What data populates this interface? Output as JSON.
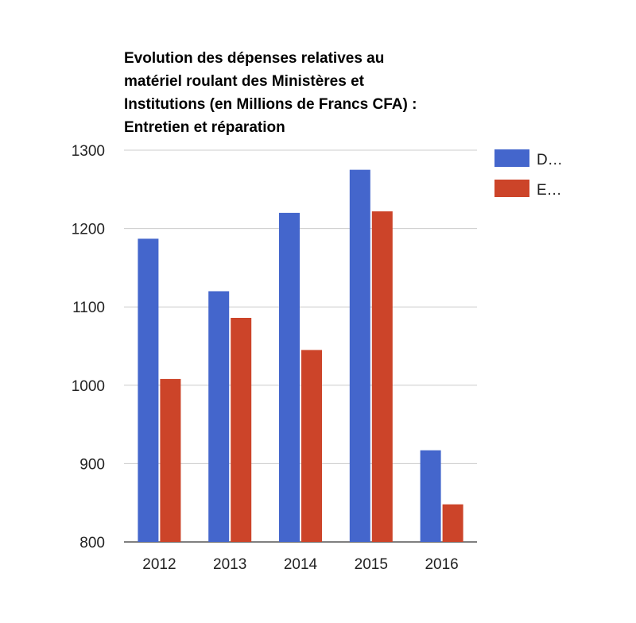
{
  "chart_data": {
    "type": "bar",
    "title": "Evolution des dépenses relatives au\nmatériel roulant des Ministères et\nInstitutions (en Millions de Francs CFA) :\nEntretien et réparation",
    "categories": [
      "2012",
      "2013",
      "2014",
      "2015",
      "2016"
    ],
    "series": [
      {
        "name": "D…",
        "color": "#4466cc",
        "values": [
          1187,
          1120,
          1220,
          1275,
          917
        ]
      },
      {
        "name": "E…",
        "color": "#cc4429",
        "values": [
          1008,
          1086,
          1045,
          1222,
          848
        ]
      }
    ],
    "ylim": [
      800,
      1300
    ],
    "yticks": [
      "800",
      "900",
      "1000",
      "1100",
      "1200",
      "1300"
    ],
    "xlabel": "",
    "ylabel": "",
    "grid": true,
    "legend_position": "right"
  }
}
